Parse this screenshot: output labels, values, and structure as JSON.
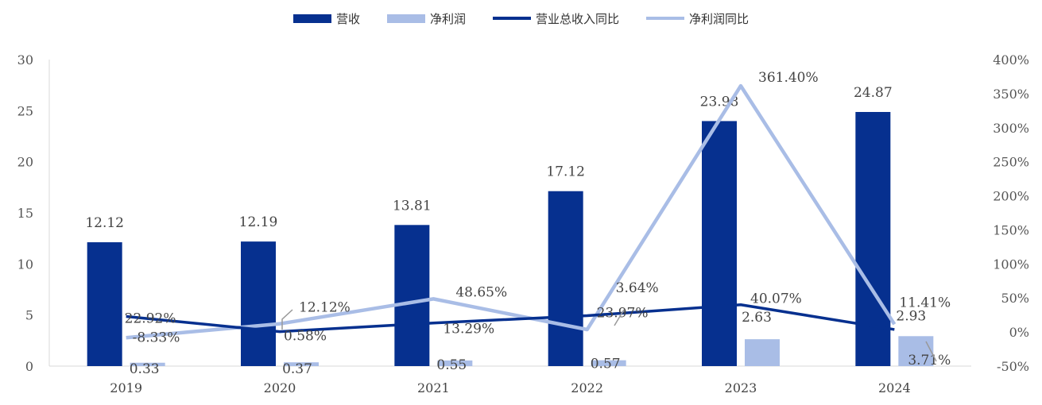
{
  "chart_data": {
    "type": "bar+line",
    "categories": [
      "2019",
      "2020",
      "2021",
      "2022",
      "2023",
      "2024"
    ],
    "series": [
      {
        "name": "营收",
        "kind": "bar",
        "axis": "left",
        "color": "#06308f",
        "values": [
          12.12,
          12.19,
          13.81,
          17.12,
          23.98,
          24.87
        ],
        "labels": [
          "12.12",
          "12.19",
          "13.81",
          "17.12",
          "23.98",
          "24.87"
        ]
      },
      {
        "name": "净利润",
        "kind": "bar",
        "axis": "left",
        "color": "#a9bde6",
        "values": [
          0.33,
          0.37,
          0.55,
          0.57,
          2.63,
          2.93
        ],
        "labels": [
          "0.33",
          "0.37",
          "0.55",
          "0.57",
          "2.63",
          "2.93"
        ]
      },
      {
        "name": "营业总收入同比",
        "kind": "line",
        "axis": "right",
        "color": "#06308f",
        "values": [
          22.92,
          0.58,
          13.29,
          23.97,
          40.07,
          3.71
        ],
        "labels": [
          "22.92%",
          "0.58%",
          "13.29%",
          "23.97%",
          "40.07%",
          "3.71%"
        ]
      },
      {
        "name": "净利润同比",
        "kind": "line",
        "axis": "right",
        "color": "#a9bde6",
        "values": [
          -8.33,
          12.12,
          48.65,
          3.64,
          361.4,
          11.41
        ],
        "labels": [
          "-8.33%",
          "12.12%",
          "48.65%",
          "3.64%",
          "361.40%",
          "11.41%"
        ]
      }
    ],
    "y_left": {
      "min": 0,
      "max": 30,
      "ticks": [
        "0",
        "5",
        "10",
        "15",
        "20",
        "25",
        "30"
      ]
    },
    "y_right": {
      "min": -50,
      "max": 400,
      "ticks": [
        "-50%",
        "0%",
        "50%",
        "100%",
        "150%",
        "200%",
        "250%",
        "300%",
        "350%",
        "400%"
      ]
    },
    "legend_position": "top-center",
    "grid": false
  }
}
